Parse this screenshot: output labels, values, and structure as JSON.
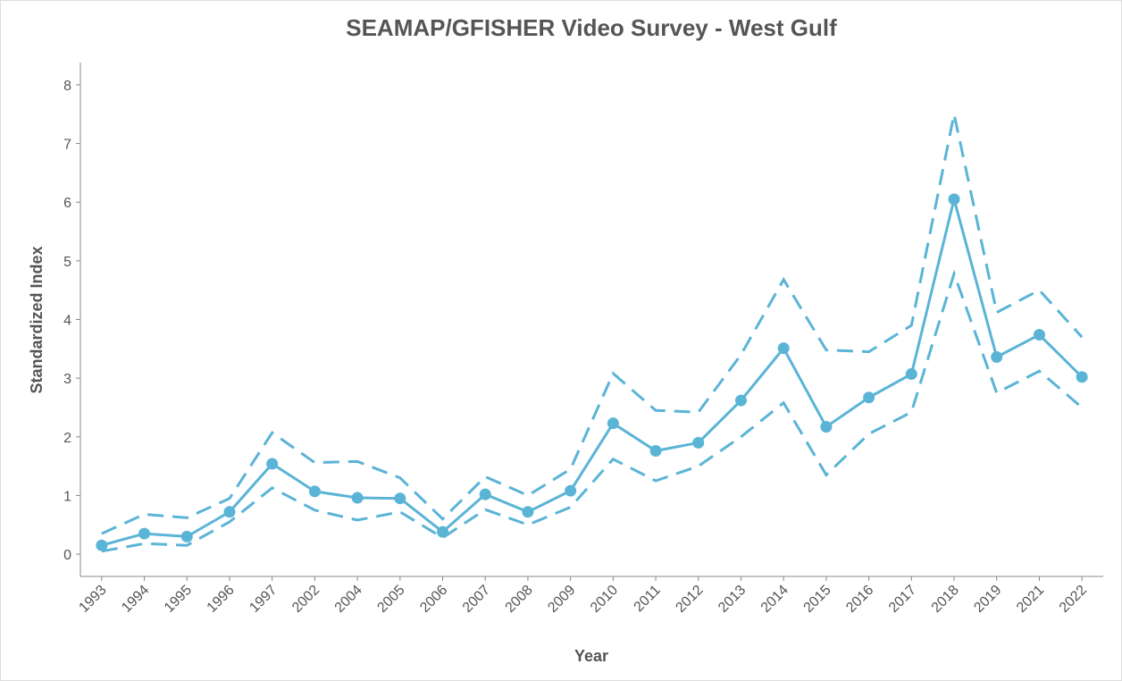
{
  "chart_data": {
    "type": "line",
    "title": "SEAMAP/GFISHER Video Survey - West Gulf",
    "x_label": "Year",
    "y_label": "Standardized Index",
    "categories": [
      "1993",
      "1994",
      "1995",
      "1996",
      "1997",
      "2002",
      "2004",
      "2005",
      "2006",
      "2007",
      "2008",
      "2009",
      "2010",
      "2011",
      "2012",
      "2013",
      "2014",
      "2015",
      "2016",
      "2017",
      "2018",
      "2019",
      "2021",
      "2022"
    ],
    "series": [
      {
        "color": "#5ab4d6",
        "dashed": false,
        "markers": true,
        "values": [
          0.15,
          0.35,
          0.3,
          0.72,
          1.54,
          1.07,
          0.96,
          0.95,
          0.38,
          1.02,
          0.72,
          1.08,
          2.23,
          1.76,
          1.9,
          2.62,
          3.51,
          2.17,
          2.67,
          3.07,
          6.05,
          3.36,
          3.74,
          3.02
        ]
      },
      {
        "color": "#5ab4d6",
        "dashed": true,
        "markers": false,
        "values": [
          0.35,
          0.68,
          0.62,
          0.95,
          2.07,
          1.56,
          1.58,
          1.3,
          0.6,
          1.32,
          1.0,
          1.45,
          3.08,
          2.45,
          2.42,
          3.4,
          4.68,
          3.48,
          3.45,
          3.9,
          7.5,
          4.12,
          4.5,
          3.7
        ]
      },
      {
        "color": "#5ab4d6",
        "dashed": true,
        "markers": false,
        "values": [
          0.05,
          0.18,
          0.15,
          0.55,
          1.13,
          0.75,
          0.58,
          0.72,
          0.28,
          0.76,
          0.5,
          0.8,
          1.62,
          1.25,
          1.5,
          2.0,
          2.58,
          1.35,
          2.05,
          2.42,
          4.78,
          2.75,
          3.12,
          2.5
        ]
      }
    ],
    "ylim": [
      -0.38,
      8.38
    ],
    "yticks": [
      0,
      1,
      2,
      3,
      4,
      5,
      6,
      7,
      8
    ],
    "grid": false
  }
}
